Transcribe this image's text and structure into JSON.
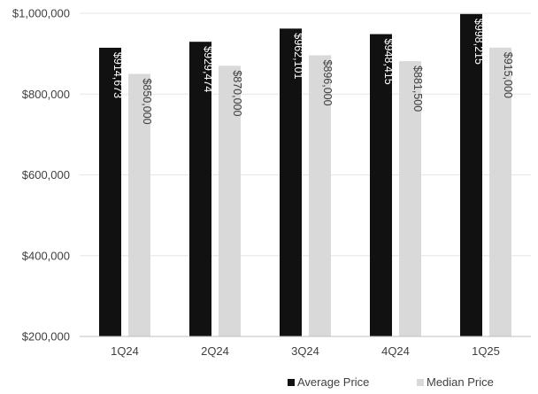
{
  "chart_data": {
    "type": "bar",
    "title": "",
    "xlabel": "",
    "ylabel": "",
    "categories": [
      "1Q24",
      "2Q24",
      "3Q24",
      "4Q24",
      "1Q25"
    ],
    "series": [
      {
        "name": "Average Price",
        "color": "#111111",
        "label_color": "#ffffff",
        "values": [
          914673,
          929474,
          962101,
          948415,
          998215
        ],
        "labels": [
          "$914,673",
          "$929,474",
          "$962,101",
          "$948,415",
          "$998,215"
        ]
      },
      {
        "name": "Median Price",
        "color": "#d9d9d9",
        "label_color": "#404040",
        "values": [
          850000,
          870000,
          896000,
          881500,
          915000
        ],
        "labels": [
          "$850,000",
          "$870,000",
          "$896,000",
          "$881,500",
          "$915,000"
        ]
      }
    ],
    "ylim": [
      200000,
      1000000
    ],
    "yticks": [
      200000,
      400000,
      600000,
      800000,
      1000000
    ],
    "ytick_labels": [
      "$200,000",
      "$400,000",
      "$600,000",
      "$800,000",
      "$1,000,000"
    ],
    "grid": true,
    "gridline_color": "#e6e6e6",
    "axis_color": "#bfbfbf",
    "legend_position": "bottom-right",
    "data_label_orientation": "vertical"
  }
}
